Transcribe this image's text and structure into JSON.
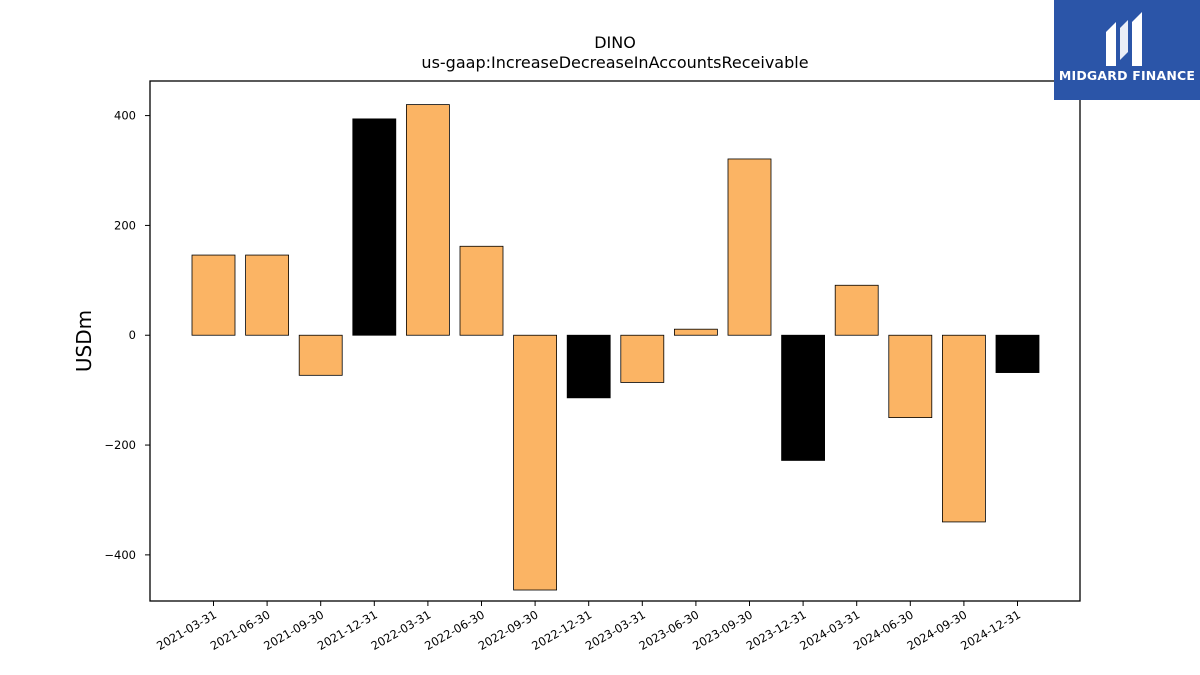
{
  "chart_data": {
    "type": "bar",
    "title": "DINO",
    "subtitle": "us-gaap:IncreaseDecreaseInAccountsReceivable",
    "xlabel": "",
    "ylabel": "USDm",
    "categories": [
      "2021-03-31",
      "2021-06-30",
      "2021-09-30",
      "2021-12-31",
      "2022-03-31",
      "2022-06-30",
      "2022-09-30",
      "2022-12-31",
      "2023-03-31",
      "2023-06-30",
      "2023-09-30",
      "2023-12-31",
      "2024-03-31",
      "2024-06-30",
      "2024-09-30",
      "2024-12-31"
    ],
    "values": [
      146,
      146,
      -73,
      394,
      420,
      162,
      -464,
      -114,
      -86,
      11,
      321,
      -228,
      91,
      -150,
      -340,
      -68
    ],
    "bar_colors": [
      "#fbb464",
      "#fbb464",
      "#fbb464",
      "#000000",
      "#fbb464",
      "#fbb464",
      "#fbb464",
      "#000000",
      "#fbb464",
      "#fbb464",
      "#fbb464",
      "#000000",
      "#fbb464",
      "#fbb464",
      "#fbb464",
      "#000000"
    ],
    "ylim": [
      -484,
      463
    ],
    "yticks": [
      -400,
      -200,
      0,
      200,
      400
    ],
    "ytick_labels": [
      "−400",
      "−200",
      "0",
      "200",
      "400"
    ],
    "grid": false,
    "legend": "none"
  },
  "logo": {
    "text": "MIDGARD FINANCE",
    "background": "#2b55a8",
    "icon": "midgard-logo-mark"
  }
}
